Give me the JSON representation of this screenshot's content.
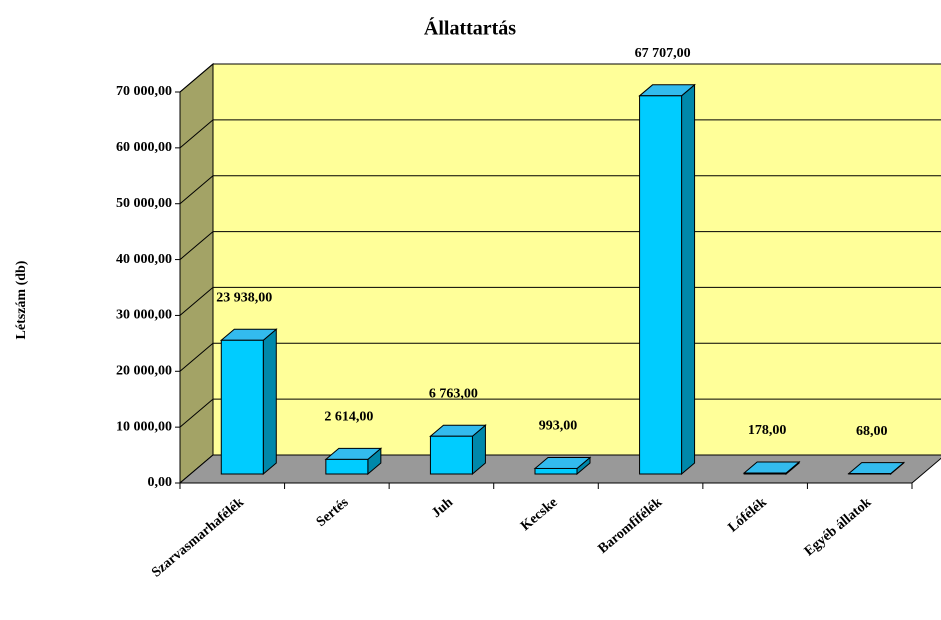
{
  "chart_data": {
    "type": "bar3d",
    "title": "Állattartás",
    "y_label": "Létszám (db)",
    "categories": [
      "Szarvasmarhafélék",
      "Sertés",
      "Juh",
      "Kecske",
      "Baromfifélék",
      "Lófélék",
      "Egyéb állatok"
    ],
    "values": [
      23938,
      2614,
      6763,
      993,
      67707,
      178,
      68
    ],
    "value_labels": [
      "23 938,00",
      "2 614,00",
      "6 763,00",
      "993,00",
      "67 707,00",
      "178,00",
      "68,00"
    ],
    "color": "#00ccff",
    "ylim": [
      0,
      70000
    ],
    "yticks": [
      {
        "value": 0,
        "label": "0,00"
      },
      {
        "value": 10000,
        "label": "10 000,00"
      },
      {
        "value": 20000,
        "label": "20 000,00"
      },
      {
        "value": 30000,
        "label": "30 000,00"
      },
      {
        "value": 40000,
        "label": "40 000,00"
      },
      {
        "value": 50000,
        "label": "50 000,00"
      },
      {
        "value": 60000,
        "label": "60 000,00"
      },
      {
        "value": 70000,
        "label": "70 000,00"
      }
    ],
    "grid": true
  }
}
